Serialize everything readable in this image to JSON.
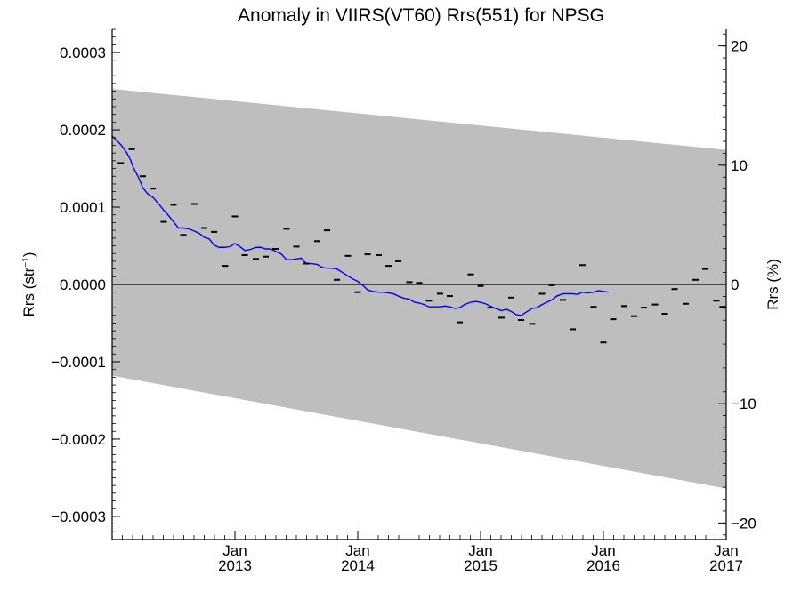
{
  "chart_data": {
    "type": "line",
    "title": "Anomaly in VIIRS(VT60) Rrs(551) for NPSG",
    "ylabel_left": "Rrs (str",
    "ylabel_left_sup": "−1",
    "ylabel_left_close": ")",
    "ylabel_right": "Rrs (%)",
    "xlim": [
      2012.0,
      2017.0
    ],
    "ylim": [
      -0.00033,
      0.00033
    ],
    "ylim_right": [
      -21.39,
      21.39
    ],
    "zero_line": 0.0,
    "grid": false,
    "x_ticks": [
      {
        "value": 2013.0,
        "month": "Jan",
        "year": "2013"
      },
      {
        "value": 2014.0,
        "month": "Jan",
        "year": "2014"
      },
      {
        "value": 2015.0,
        "month": "Jan",
        "year": "2015"
      },
      {
        "value": 2016.0,
        "month": "Jan",
        "year": "2016"
      },
      {
        "value": 2017.0,
        "month": "Jan",
        "year": "2017"
      }
    ],
    "y_ticks_left": [
      {
        "value": 0.0003,
        "label": "0.0003"
      },
      {
        "value": 0.0002,
        "label": "0.0002"
      },
      {
        "value": 0.0001,
        "label": "0.0001"
      },
      {
        "value": 0.0,
        "label": "0.0000"
      },
      {
        "value": -0.0001,
        "label": "−0.0001"
      },
      {
        "value": -0.0002,
        "label": "−0.0002"
      },
      {
        "value": -0.0003,
        "label": "−0.0003"
      }
    ],
    "y_ticks_right": [
      {
        "value": 20,
        "label": "20"
      },
      {
        "value": 10,
        "label": "10"
      },
      {
        "value": 0,
        "label": "0"
      },
      {
        "value": -10,
        "label": "−10"
      },
      {
        "value": -20,
        "label": "−20"
      }
    ],
    "band": {
      "color": "#bebebe",
      "upper": [
        [
          2012.0,
          0.000253
        ],
        [
          2017.0,
          0.000174
        ]
      ],
      "lower": [
        [
          2012.0,
          -0.000118
        ],
        [
          2017.0,
          -0.000264
        ]
      ]
    },
    "series": [
      {
        "style": "line",
        "color": "#0000ff",
        "points": [
          [
            2012.0,
            0.000192
          ],
          [
            2012.04,
            0.000186
          ],
          [
            2012.08,
            0.000179
          ],
          [
            2012.12,
            0.00017
          ],
          [
            2012.15,
            0.000161
          ],
          [
            2012.17,
            0.000152
          ],
          [
            2012.21,
            0.00014
          ],
          [
            2012.25,
            0.000125
          ],
          [
            2012.29,
            0.000117
          ],
          [
            2012.33,
            0.000113
          ],
          [
            2012.38,
            0.000104
          ],
          [
            2012.42,
            9.6e-05
          ],
          [
            2012.46,
            8.9e-05
          ],
          [
            2012.5,
            8.1e-05
          ],
          [
            2012.54,
            7.3e-05
          ],
          [
            2012.58,
            7.3e-05
          ],
          [
            2012.62,
            7.2e-05
          ],
          [
            2012.67,
            6.9e-05
          ],
          [
            2012.71,
            6.6e-05
          ],
          [
            2012.75,
            6.1e-05
          ],
          [
            2012.79,
            5.9e-05
          ],
          [
            2012.83,
            5.1e-05
          ],
          [
            2012.87,
            4.8e-05
          ],
          [
            2012.92,
            4.8e-05
          ],
          [
            2012.96,
            4.9e-05
          ],
          [
            2013.0,
            5.3e-05
          ],
          [
            2013.04,
            4.9e-05
          ],
          [
            2013.08,
            4.4e-05
          ],
          [
            2013.12,
            4.5e-05
          ],
          [
            2013.17,
            4.8e-05
          ],
          [
            2013.21,
            4.8e-05
          ],
          [
            2013.25,
            4.6e-05
          ],
          [
            2013.29,
            4.6e-05
          ],
          [
            2013.33,
            4.3e-05
          ],
          [
            2013.38,
            3.9e-05
          ],
          [
            2013.42,
            3.2e-05
          ],
          [
            2013.46,
            3.2e-05
          ],
          [
            2013.5,
            3.3e-05
          ],
          [
            2013.54,
            3.4e-05
          ],
          [
            2013.58,
            2.7e-05
          ],
          [
            2013.62,
            2.7e-05
          ],
          [
            2013.67,
            2.6e-05
          ],
          [
            2013.71,
            2.2e-05
          ],
          [
            2013.75,
            2.1e-05
          ],
          [
            2013.79,
            2.1e-05
          ],
          [
            2013.83,
            2e-05
          ],
          [
            2013.87,
            1.6e-05
          ],
          [
            2013.92,
            1.1e-05
          ],
          [
            2013.96,
            7e-06
          ],
          [
            2014.0,
            4e-06
          ],
          [
            2014.04,
            -1e-06
          ],
          [
            2014.08,
            -7e-06
          ],
          [
            2014.12,
            -9e-06
          ],
          [
            2014.17,
            -1e-05
          ],
          [
            2014.21,
            -1e-05
          ],
          [
            2014.25,
            -1.1e-05
          ],
          [
            2014.29,
            -1.2e-05
          ],
          [
            2014.33,
            -1.5e-05
          ],
          [
            2014.38,
            -1.8e-05
          ],
          [
            2014.42,
            -1.9e-05
          ],
          [
            2014.46,
            -2.3e-05
          ],
          [
            2014.5,
            -2.4e-05
          ],
          [
            2014.54,
            -2.6e-05
          ],
          [
            2014.58,
            -2.9e-05
          ],
          [
            2014.62,
            -2.9e-05
          ],
          [
            2014.67,
            -2.9e-05
          ],
          [
            2014.71,
            -2.8e-05
          ],
          [
            2014.75,
            -2.9e-05
          ],
          [
            2014.79,
            -3.1e-05
          ],
          [
            2014.83,
            -3e-05
          ],
          [
            2014.87,
            -2.6e-05
          ],
          [
            2014.92,
            -2.3e-05
          ],
          [
            2014.96,
            -2.2e-05
          ],
          [
            2015.0,
            -2.3e-05
          ],
          [
            2015.04,
            -2.5e-05
          ],
          [
            2015.08,
            -2.8e-05
          ],
          [
            2015.12,
            -3.1e-05
          ],
          [
            2015.17,
            -3.4e-05
          ],
          [
            2015.21,
            -3.2e-05
          ],
          [
            2015.25,
            -3.5e-05
          ],
          [
            2015.29,
            -3.9e-05
          ],
          [
            2015.33,
            -4e-05
          ],
          [
            2015.38,
            -3.5e-05
          ],
          [
            2015.42,
            -3.1e-05
          ],
          [
            2015.46,
            -3e-05
          ],
          [
            2015.5,
            -2.6e-05
          ],
          [
            2015.54,
            -2.3e-05
          ],
          [
            2015.58,
            -2e-05
          ],
          [
            2015.62,
            -1.5e-05
          ],
          [
            2015.67,
            -1.2e-05
          ],
          [
            2015.71,
            -1.2e-05
          ],
          [
            2015.75,
            -1.2e-05
          ],
          [
            2015.79,
            -1.3e-05
          ],
          [
            2015.83,
            -1e-05
          ],
          [
            2015.87,
            -1.1e-05
          ],
          [
            2015.92,
            -1e-05
          ],
          [
            2015.96,
            -8e-06
          ],
          [
            2016.0,
            -9e-06
          ],
          [
            2016.04,
            -1e-05
          ]
        ]
      },
      {
        "style": "dash-marker",
        "color": "#000000",
        "points": [
          [
            2012.07,
            0.000157
          ],
          [
            2012.16,
            0.000175
          ],
          [
            2012.25,
            0.00014
          ],
          [
            2012.33,
            0.000124
          ],
          [
            2012.42,
            8.1e-05
          ],
          [
            2012.5,
            0.000103
          ],
          [
            2012.58,
            6.4e-05
          ],
          [
            2012.67,
            0.000104
          ],
          [
            2012.75,
            7.3e-05
          ],
          [
            2012.83,
            6.8e-05
          ],
          [
            2012.92,
            2.4e-05
          ],
          [
            2013.0,
            8.8e-05
          ],
          [
            2013.08,
            3.8e-05
          ],
          [
            2013.17,
            3.3e-05
          ],
          [
            2013.25,
            3.6e-05
          ],
          [
            2013.33,
            4.6e-05
          ],
          [
            2013.42,
            7.2e-05
          ],
          [
            2013.5,
            4.9e-05
          ],
          [
            2013.58,
            2.7e-05
          ],
          [
            2013.67,
            5.6e-05
          ],
          [
            2013.75,
            7e-05
          ],
          [
            2013.83,
            6e-06
          ],
          [
            2013.92,
            3.7e-05
          ],
          [
            2014.0,
            -1e-05
          ],
          [
            2014.08,
            3.9e-05
          ],
          [
            2014.17,
            3.8e-05
          ],
          [
            2014.25,
            2.4e-05
          ],
          [
            2014.33,
            3e-05
          ],
          [
            2014.42,
            3e-06
          ],
          [
            2014.5,
            2e-06
          ],
          [
            2014.58,
            -2.1e-05
          ],
          [
            2014.67,
            -1.2e-05
          ],
          [
            2014.75,
            -1.5e-05
          ],
          [
            2014.83,
            -4.9e-05
          ],
          [
            2014.92,
            1.3e-05
          ],
          [
            2015.0,
            -2e-06
          ],
          [
            2015.08,
            -3e-05
          ],
          [
            2015.17,
            -4.3e-05
          ],
          [
            2015.25,
            -1.7e-05
          ],
          [
            2015.33,
            -4.6e-05
          ],
          [
            2015.42,
            -5.1e-05
          ],
          [
            2015.5,
            -1.2e-05
          ],
          [
            2015.58,
            -1e-06
          ],
          [
            2015.67,
            -2e-05
          ],
          [
            2015.75,
            -5.8e-05
          ],
          [
            2015.83,
            2.5e-05
          ],
          [
            2015.92,
            -2.9e-05
          ],
          [
            2016.0,
            -7.5e-05
          ],
          [
            2016.08,
            -4.5e-05
          ],
          [
            2016.17,
            -2.8e-05
          ],
          [
            2016.25,
            -4.1e-05
          ],
          [
            2016.33,
            -3e-05
          ],
          [
            2016.42,
            -2.6e-05
          ],
          [
            2016.5,
            -3.8e-05
          ],
          [
            2016.58,
            -6e-06
          ],
          [
            2016.67,
            -2.5e-05
          ],
          [
            2016.75,
            6e-06
          ],
          [
            2016.83,
            2e-05
          ],
          [
            2016.92,
            -2.1e-05
          ],
          [
            2016.97,
            -2.9e-05
          ]
        ]
      }
    ]
  }
}
